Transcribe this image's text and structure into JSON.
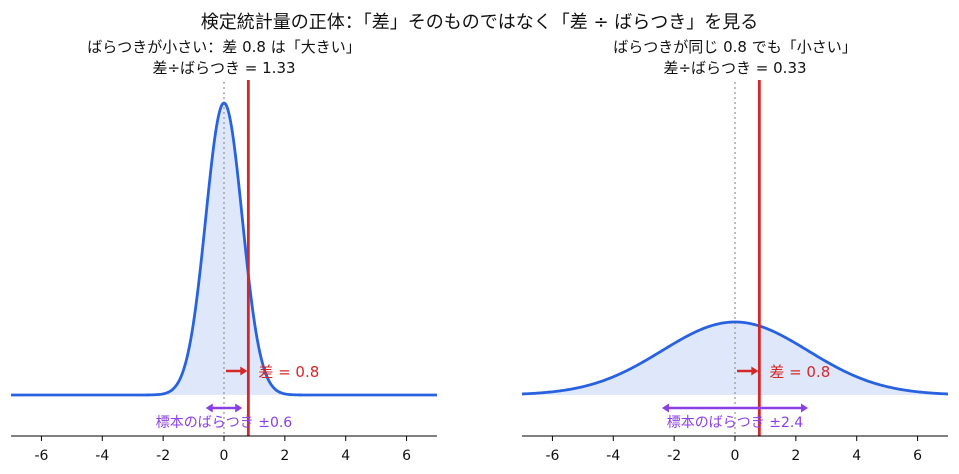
{
  "figure": {
    "title": "検定統計量の正体：「差」そのものではなく「差 ÷ ばらつき」を見る"
  },
  "colors": {
    "curve": "#2962e0",
    "fill": "#dfe8fa",
    "diff_line": "#d62728",
    "spread_arrow": "#8a3ee6",
    "zero_line": "#999999",
    "axis": "#000000"
  },
  "chart_data": [
    {
      "type": "area",
      "title_line1": "ばらつきが小さい：差 0.8 は「大きい」",
      "title_line2": "差÷ばらつき = 1.33",
      "distribution": {
        "family": "normal",
        "mean": 0,
        "sd": 0.6
      },
      "difference": 0.8,
      "difference_label": "差 = 0.8",
      "spread_label": "標本のばらつき ±0.6",
      "spread": 0.6,
      "xlim": [
        -7,
        7
      ],
      "xticks": [
        -6,
        -4,
        -2,
        0,
        2,
        4,
        6
      ],
      "yaxis_visible": false,
      "grid": false
    },
    {
      "type": "area",
      "title_line1": "ばらつきが同じ 0.8 でも「小さい」",
      "title_line2": "差÷ばらつき = 0.33",
      "distribution": {
        "family": "normal",
        "mean": 0,
        "sd": 2.4
      },
      "difference": 0.8,
      "difference_label": "差 = 0.8",
      "spread_label": "標本のばらつき ±2.4",
      "spread": 2.4,
      "xlim": [
        -7,
        7
      ],
      "xticks": [
        -6,
        -4,
        -2,
        0,
        2,
        4,
        6
      ],
      "yaxis_visible": false,
      "grid": false
    }
  ]
}
